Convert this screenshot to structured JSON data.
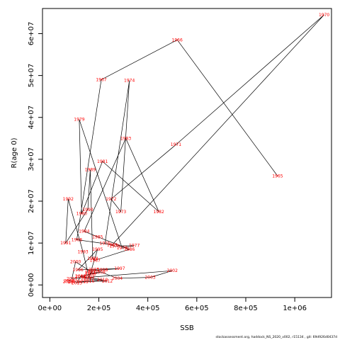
{
  "chart_data": {
    "type": "scatter",
    "title": "",
    "xlabel": "SSB",
    "ylabel": "R(age 0)",
    "xlim": [
      -30000,
      1150000
    ],
    "ylim": [
      -3000000,
      66000000
    ],
    "xticks": [
      {
        "value": 0,
        "label": "0e+00"
      },
      {
        "value": 200000,
        "label": "2e+05"
      },
      {
        "value": 400000,
        "label": "4e+05"
      },
      {
        "value": 600000,
        "label": "6e+05"
      },
      {
        "value": 800000,
        "label": "8e+05"
      },
      {
        "value": 1000000,
        "label": "1e+06"
      }
    ],
    "yticks": [
      {
        "value": 0,
        "label": "0e+00"
      },
      {
        "value": 10000000,
        "label": "1e+07"
      },
      {
        "value": 20000000,
        "label": "2e+07"
      },
      {
        "value": 30000000,
        "label": "3e+07"
      },
      {
        "value": 40000000,
        "label": "4e+07"
      },
      {
        "value": 50000000,
        "label": "5e+07"
      },
      {
        "value": 60000000,
        "label": "6e+07"
      }
    ],
    "grid": false,
    "connected_in_year_order": true,
    "label_color": "#ff0000",
    "line_color": "#000000",
    "points": [
      {
        "label": "1965",
        "x": 930000,
        "y": 26000000
      },
      {
        "label": "1966",
        "x": 520000,
        "y": 58500000
      },
      {
        "label": "1967",
        "x": 210000,
        "y": 49000000
      },
      {
        "label": "1968",
        "x": 110000,
        "y": 10800000
      },
      {
        "label": "1969",
        "x": 255000,
        "y": 9600000
      },
      {
        "label": "1970",
        "x": 1120000,
        "y": 64500000
      },
      {
        "label": "1971",
        "x": 515000,
        "y": 33500000
      },
      {
        "label": "1972",
        "x": 250000,
        "y": 20500000
      },
      {
        "label": "1973",
        "x": 290000,
        "y": 17500000
      },
      {
        "label": "1974",
        "x": 325000,
        "y": 48800000
      },
      {
        "label": "1975",
        "x": 225000,
        "y": 9900000
      },
      {
        "label": "1976",
        "x": 265000,
        "y": 9300000
      },
      {
        "label": "1977",
        "x": 345000,
        "y": 9400000
      },
      {
        "label": "1978",
        "x": 295000,
        "y": 8800000
      },
      {
        "label": "1979",
        "x": 120000,
        "y": 39500000
      },
      {
        "label": "1980",
        "x": 130000,
        "y": 17000000
      },
      {
        "label": "1981",
        "x": 215000,
        "y": 29500000
      },
      {
        "label": "1982",
        "x": 445000,
        "y": 17500000
      },
      {
        "label": "1983",
        "x": 310000,
        "y": 35000000
      },
      {
        "label": "1984",
        "x": 140000,
        "y": 12800000
      },
      {
        "label": "1985",
        "x": 195000,
        "y": 11500000
      },
      {
        "label": "1986",
        "x": 325000,
        "y": 8500000
      },
      {
        "label": "1987",
        "x": 185000,
        "y": 5900000
      },
      {
        "label": "1988",
        "x": 175000,
        "y": 6300000
      },
      {
        "label": "1989",
        "x": 165000,
        "y": 27500000
      },
      {
        "label": "1990",
        "x": 155000,
        "y": 18000000
      },
      {
        "label": "1991",
        "x": 65000,
        "y": 10000000
      },
      {
        "label": "1992",
        "x": 75000,
        "y": 20500000
      },
      {
        "label": "1993",
        "x": 135000,
        "y": 7900000
      },
      {
        "label": "1994",
        "x": 160000,
        "y": 1800000
      },
      {
        "label": "1995",
        "x": 195000,
        "y": 8500000
      },
      {
        "label": "1996",
        "x": 115000,
        "y": 3600000
      },
      {
        "label": "1997",
        "x": 285000,
        "y": 3900000
      },
      {
        "label": "1998",
        "x": 215000,
        "y": 3600000
      },
      {
        "label": "1999",
        "x": 165000,
        "y": 3300000
      },
      {
        "label": "2000",
        "x": 105000,
        "y": 5500000
      },
      {
        "label": "2001",
        "x": 90000,
        "y": 1500000
      },
      {
        "label": "2002",
        "x": 500000,
        "y": 3400000
      },
      {
        "label": "2003",
        "x": 410000,
        "y": 1800000
      },
      {
        "label": "2004",
        "x": 275000,
        "y": 1600000
      },
      {
        "label": "2005",
        "x": 180000,
        "y": 3700000
      },
      {
        "label": "2006",
        "x": 165000,
        "y": 2500000
      },
      {
        "label": "2007",
        "x": 165000,
        "y": 2800000
      },
      {
        "label": "2008",
        "x": 205000,
        "y": 3000000
      },
      {
        "label": "2009",
        "x": 125000,
        "y": 2100000
      },
      {
        "label": "2010",
        "x": 215000,
        "y": 1200000
      },
      {
        "label": "2011",
        "x": 135000,
        "y": 800000
      },
      {
        "label": "2012",
        "x": 235000,
        "y": 900000
      },
      {
        "label": "2013",
        "x": 150000,
        "y": 1500000
      },
      {
        "label": "2014",
        "x": 125000,
        "y": 2000000
      },
      {
        "label": "2015",
        "x": 110000,
        "y": 500000
      },
      {
        "label": "2016",
        "x": 160000,
        "y": 900000
      },
      {
        "label": "2017",
        "x": 95000,
        "y": 700000
      },
      {
        "label": "2018",
        "x": 80000,
        "y": 1000000
      },
      {
        "label": "2019",
        "x": 75000,
        "y": 800000
      }
    ]
  },
  "footer": {
    "text": "stockassessment.org,  haddock_NS_2020_v002,  r15134 ,  git:  69d926d0437d"
  }
}
